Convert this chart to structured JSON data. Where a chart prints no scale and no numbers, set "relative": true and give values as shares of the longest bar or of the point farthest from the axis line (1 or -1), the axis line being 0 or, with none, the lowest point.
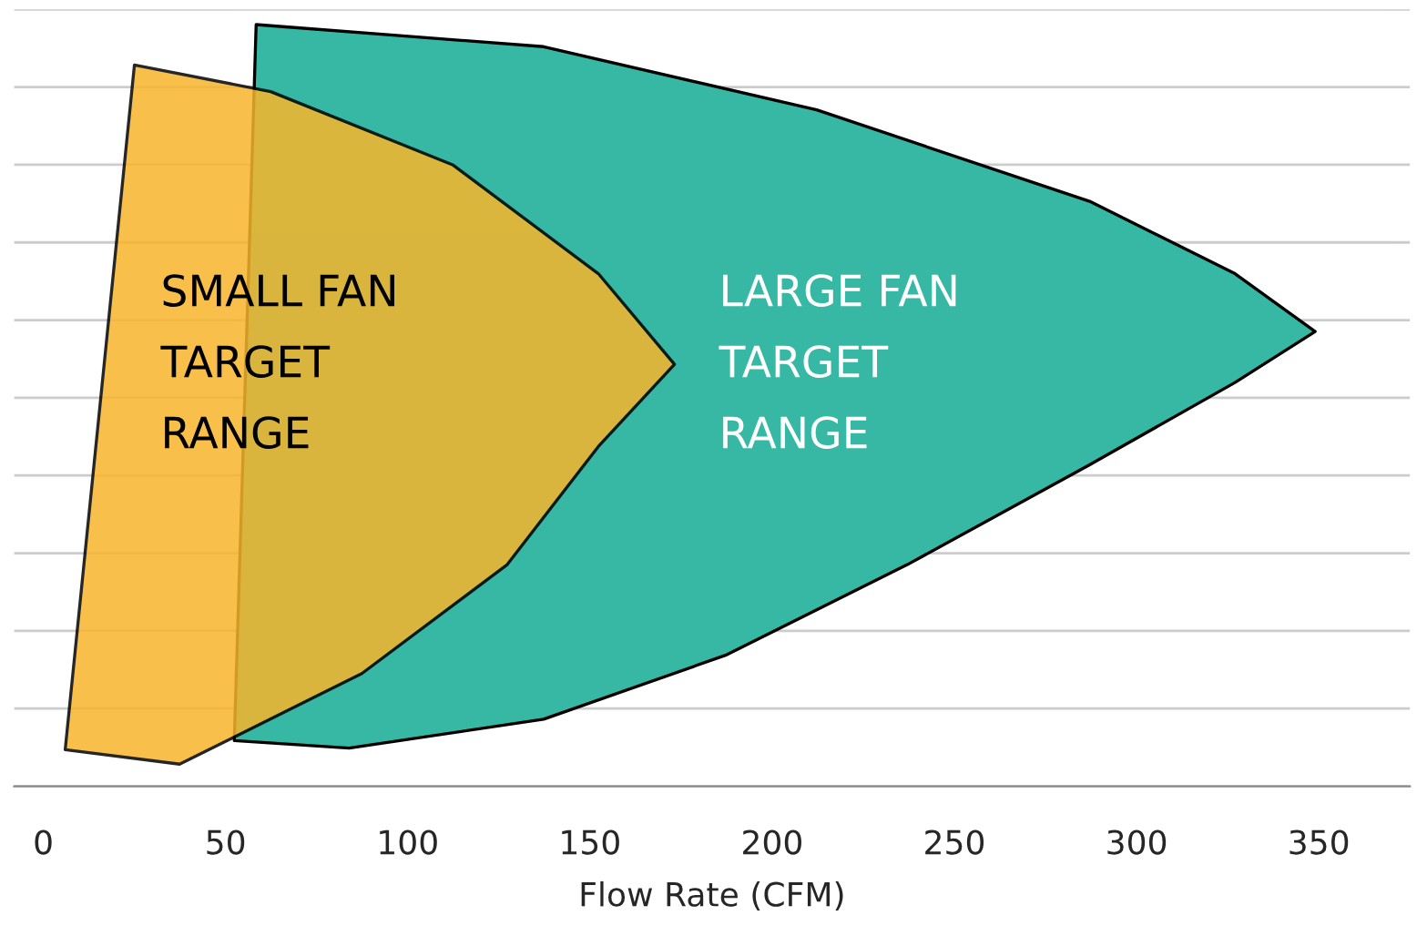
{
  "chart_data": {
    "type": "area",
    "relative": true,
    "xlabel": "Flow Rate (CFM)",
    "xlim": [
      -8,
      375
    ],
    "xticks": [
      0,
      50,
      100,
      150,
      200,
      250,
      300,
      350
    ],
    "grid": "y",
    "legend": false,
    "series": [
      {
        "color": "#36b8a4",
        "x": [
          58.4,
          137.3,
          212.2,
          287.1,
          327.0,
          349.0,
          327.0,
          287.1,
          237.1,
          187.2,
          137.3,
          83.9,
          52.4
        ],
        "values": [
          1.0,
          0.971,
          0.888,
          0.768,
          0.673,
          0.597,
          0.53,
          0.422,
          0.291,
          0.172,
          0.088,
          0.05,
          0.06
        ]
      },
      {
        "color": "#f7b52c",
        "x": [
          25.0,
          62.4,
          112.3,
          152.3,
          173.2,
          152.3,
          127.3,
          87.4,
          37.4,
          6.0
        ],
        "values": [
          0.947,
          0.912,
          0.816,
          0.673,
          0.554,
          0.446,
          0.291,
          0.148,
          0.029,
          0.048
        ]
      }
    ],
    "annotations": [
      "SMALL FAN\nTARGET\nRANGE",
      "LARGE FAN\nTARGET\nRANGE"
    ]
  }
}
